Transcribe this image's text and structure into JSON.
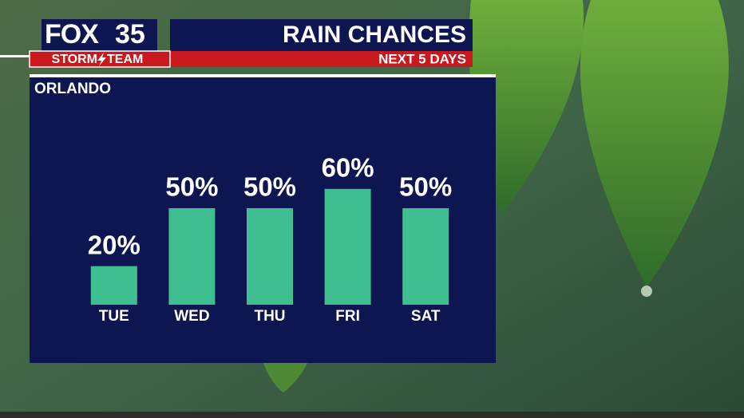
{
  "logo": {
    "brand": "FOX",
    "channel": "35",
    "team_left": "STORM",
    "team_right": "TEAM"
  },
  "chart_data": {
    "type": "bar",
    "title": "RAIN CHANCES",
    "subtitle": "NEXT 5 DAYS",
    "location": "ORLANDO",
    "categories": [
      "TUE",
      "WED",
      "THU",
      "FRI",
      "SAT"
    ],
    "values": [
      20,
      50,
      50,
      60,
      50
    ],
    "value_labels": [
      "20%",
      "50%",
      "50%",
      "60%",
      "50%"
    ],
    "color": "#3fbf8f",
    "ylim": [
      0,
      100
    ]
  }
}
